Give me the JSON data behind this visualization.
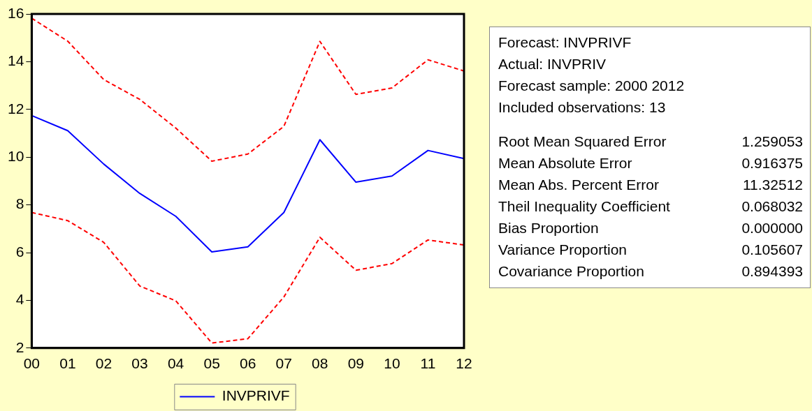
{
  "chart_data": {
    "type": "line",
    "categories": [
      "00",
      "01",
      "02",
      "03",
      "04",
      "05",
      "06",
      "07",
      "08",
      "09",
      "10",
      "11",
      "12"
    ],
    "series": [
      {
        "name": "INVPRIVF",
        "color": "#0000ff",
        "line_style": "solid",
        "values": [
          11.74,
          11.11,
          9.71,
          8.48,
          7.52,
          6.03,
          6.24,
          7.68,
          10.73,
          8.95,
          9.21,
          10.28,
          9.94
        ]
      },
      {
        "color": "#ff0000",
        "line_style": "dashed",
        "values": [
          15.82,
          14.86,
          13.25,
          12.42,
          11.22,
          9.83,
          10.13,
          11.29,
          14.85,
          12.63,
          12.9,
          14.08,
          13.61
        ]
      },
      {
        "color": "#ff0000",
        "line_style": "dashed",
        "values": [
          7.68,
          7.34,
          6.43,
          4.6,
          3.98,
          2.21,
          2.39,
          4.14,
          6.64,
          5.26,
          5.54,
          6.53,
          6.32
        ]
      }
    ],
    "ylim": [
      2,
      16
    ],
    "yticks": [
      2,
      4,
      6,
      8,
      10,
      12,
      14,
      16
    ],
    "grid": false,
    "legend": "bottom",
    "marker": "none",
    "annotations": [
      "Forecast: INVPRIVF",
      "Actual: INVPRIV",
      "Forecast sample: 2000 2012",
      "Included observations: 13",
      "Root Mean Squared Error\t1.259053",
      "Mean Absolute Error\t0.916375",
      "Mean Abs. Percent Error\t11.32512",
      "Theil Inequality Coefficient\t0.068032",
      "Bias Proportion\t0.000000",
      "Variance Proportion\t0.105607",
      "Covariance Proportion\t0.894393"
    ]
  }
}
